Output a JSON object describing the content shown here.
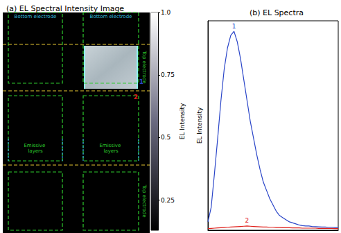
{
  "panel_a": {
    "title": "(a) EL Spectral Intensity Image",
    "labels": {
      "bottom_electrode": "Bottom electrode",
      "top_electrode": "Top electrode",
      "emissive_layers": "Emissive layers"
    },
    "colorbar": {
      "label": "EL Intensity",
      "range": [
        0.13,
        1
      ],
      "ticks": [
        0.25,
        0.5,
        0.75,
        {
          "value": 1,
          "label": "1.0"
        }
      ]
    }
  },
  "chart_data": {
    "type": "line",
    "title": "(b) EL Spectra",
    "ylabel": "EL Intensity",
    "tick_labels": false,
    "xlim": [
      0,
      1
    ],
    "ylim": [
      0,
      1
    ],
    "x": [
      0,
      0.025,
      0.05,
      0.075,
      0.1,
      0.125,
      0.15,
      0.175,
      0.2,
      0.225,
      0.25,
      0.275,
      0.3,
      0.325,
      0.35,
      0.375,
      0.4,
      0.425,
      0.45,
      0.475,
      0.5,
      0.525,
      0.55,
      0.575,
      0.6,
      0.625,
      0.65,
      0.675,
      0.7,
      0.725,
      0.75,
      0.775,
      0.8,
      0.825,
      0.85,
      0.875,
      0.9,
      0.925,
      0.95,
      0.975,
      1
    ],
    "series": [
      {
        "name": "1",
        "color": "#2a45c8",
        "values": [
          0.04,
          0.11,
          0.27,
          0.44,
          0.62,
          0.77,
          0.87,
          0.93,
          0.95,
          0.9,
          0.82,
          0.72,
          0.62,
          0.52,
          0.44,
          0.36,
          0.29,
          0.23,
          0.19,
          0.15,
          0.12,
          0.09,
          0.07,
          0.06,
          0.05,
          0.04,
          0.035,
          0.03,
          0.025,
          0.022,
          0.02,
          0.02,
          0.018,
          0.017,
          0.016,
          0.015,
          0.015,
          0.014,
          0.014,
          0.013,
          0.013
        ]
      },
      {
        "name": "2",
        "color": "#e0201b",
        "values": [
          0.008,
          0.009,
          0.01,
          0.011,
          0.012,
          0.013,
          0.014,
          0.015,
          0.016,
          0.017,
          0.018,
          0.019,
          0.02,
          0.019,
          0.018,
          0.017,
          0.016,
          0.015,
          0.015,
          0.014,
          0.014,
          0.013,
          0.013,
          0.012,
          0.012,
          0.012,
          0.011,
          0.011,
          0.011,
          0.01,
          0.01,
          0.01,
          0.01,
          0.01,
          0.009,
          0.009,
          0.009,
          0.009,
          0.009,
          0.008,
          0.008
        ]
      }
    ]
  }
}
